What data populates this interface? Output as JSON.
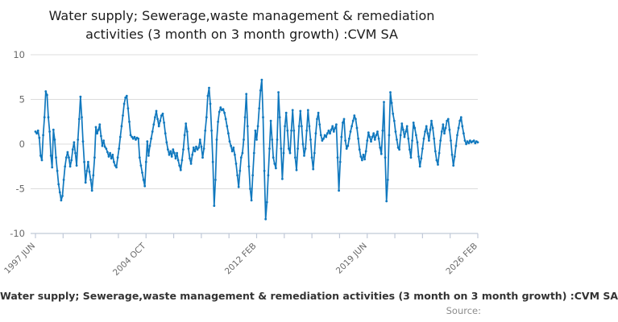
{
  "title": {
    "line1": "Water supply; Sewerage,waste management & remediation",
    "line2": "activities (3 month on 3 month growth) :CVM SA"
  },
  "footer": {
    "legend": "Water supply; Sewerage,waste management & remediation activities (3 month on 3 month growth) :CVM SA",
    "source_label": "Source:"
  },
  "chart": {
    "line_color": "#1078be",
    "marker_color": "#1078be",
    "grid_color": "#dcdcdc",
    "axis_color": "#c0c9d8",
    "tick_label_color": "#696969",
    "x_tick_count": 17,
    "x_label_tick_indexes": [
      0,
      4,
      8,
      12,
      16
    ]
  },
  "chart_data": {
    "type": "line",
    "title": "Water supply; Sewerage,waste management & remediation activities (3 month on 3 month growth) :CVM SA",
    "frequency": "monthly",
    "x_start": "1997 JUN",
    "x_end": "2026 FEB",
    "x_tick_labels": [
      "1997 JUN",
      "2004 OCT",
      "2012 FEB",
      "2019 JUN",
      "2026 FEB"
    ],
    "ylim": [
      -10,
      10
    ],
    "y_ticks": [
      10,
      5,
      0,
      -5,
      -10
    ],
    "grid": true,
    "legend_position": "bottom",
    "values": [
      1.4,
      1.2,
      1.5,
      0.7,
      -1.3,
      -1.8,
      1.0,
      3.0,
      5.9,
      5.5,
      3.0,
      1.4,
      -1.3,
      -2.6,
      1.6,
      0.5,
      -1.5,
      -3.0,
      -4.5,
      -5.4,
      -6.3,
      -5.8,
      -4.0,
      -2.5,
      -1.5,
      -0.9,
      -1.5,
      -2.5,
      -1.8,
      -0.6,
      0.2,
      -1.0,
      -2.4,
      0.5,
      2.8,
      5.3,
      3.0,
      0.3,
      -2.0,
      -4.3,
      -3.0,
      -2.0,
      -3.1,
      -4.0,
      -5.2,
      -3.5,
      -1.5,
      1.9,
      1.2,
      1.6,
      2.2,
      0.9,
      -0.2,
      0.4,
      -0.3,
      -0.5,
      -0.9,
      -1.4,
      -1.0,
      -1.6,
      -1.2,
      -2.0,
      -2.4,
      -2.6,
      -1.5,
      -0.5,
      0.8,
      2.0,
      3.2,
      4.5,
      5.2,
      5.4,
      4.0,
      2.5,
      1.0,
      0.8,
      0.6,
      0.8,
      0.5,
      0.7,
      0.6,
      -1.5,
      -2.4,
      -3.2,
      -4.0,
      -4.7,
      -2.0,
      0.3,
      -1.3,
      -0.2,
      0.6,
      1.4,
      2.2,
      3.0,
      3.7,
      2.8,
      2.0,
      2.6,
      3.2,
      3.4,
      2.4,
      1.2,
      0.2,
      -0.6,
      -1.2,
      -0.8,
      -1.4,
      -0.6,
      -1.0,
      -1.6,
      -1.0,
      -1.8,
      -2.4,
      -2.9,
      -1.8,
      -0.6,
      1.0,
      2.3,
      1.4,
      -0.5,
      -1.6,
      -2.2,
      -1.2,
      -0.4,
      -0.8,
      -0.3,
      -0.6,
      -0.4,
      0.5,
      -0.3,
      -1.5,
      -0.5,
      1.5,
      3.0,
      5.4,
      6.3,
      4.5,
      1.5,
      -2.0,
      -6.9,
      -4.0,
      0.5,
      2.5,
      3.6,
      4.1,
      3.8,
      3.9,
      3.5,
      2.8,
      2.0,
      1.2,
      0.3,
      -0.2,
      -0.8,
      -0.4,
      -1.2,
      -2.2,
      -3.5,
      -4.8,
      -3.0,
      -1.5,
      -1.0,
      0.5,
      3.0,
      5.6,
      2.0,
      -2.5,
      -5.0,
      -6.3,
      -3.5,
      -1.0,
      1.5,
      0.5,
      2.0,
      4.0,
      6.0,
      7.2,
      3.0,
      -3.0,
      -8.4,
      -6.5,
      -3.5,
      -0.5,
      2.6,
      0.5,
      -1.5,
      -2.2,
      -2.7,
      0.5,
      5.8,
      3.0,
      -0.5,
      -3.9,
      -1.0,
      2.0,
      3.5,
      1.5,
      -0.5,
      -1.0,
      1.5,
      3.8,
      1.5,
      -1.5,
      -2.9,
      -0.5,
      2.0,
      3.7,
      2.0,
      0.0,
      -1.3,
      -0.5,
      1.5,
      3.8,
      2.0,
      0.5,
      -1.5,
      -2.8,
      -1.0,
      1.2,
      2.8,
      3.5,
      2.2,
      1.0,
      0.4,
      0.6,
      1.0,
      0.8,
      1.2,
      1.5,
      1.2,
      1.6,
      2.0,
      1.4,
      1.8,
      2.2,
      -1.5,
      -5.2,
      -2.0,
      0.8,
      2.4,
      2.8,
      0.4,
      -0.5,
      -0.2,
      0.6,
      1.4,
      2.0,
      2.6,
      3.2,
      2.8,
      1.8,
      0.6,
      -0.6,
      -1.4,
      -1.8,
      -1.2,
      -1.7,
      -0.8,
      0.4,
      1.3,
      0.8,
      0.3,
      0.8,
      1.2,
      0.5,
      1.0,
      1.4,
      0.6,
      -0.4,
      -1.1,
      1.5,
      4.7,
      -1.5,
      -6.4,
      -4.0,
      1.0,
      5.8,
      4.6,
      3.4,
      2.6,
      1.4,
      0.5,
      -0.4,
      -0.6,
      1.0,
      2.3,
      1.6,
      0.8,
      1.4,
      2.0,
      0.6,
      -0.6,
      -1.5,
      0.4,
      2.4,
      1.8,
      1.0,
      0.2,
      -1.4,
      -2.5,
      -1.6,
      -0.5,
      0.6,
      1.4,
      2.0,
      1.2,
      0.4,
      1.6,
      2.6,
      1.8,
      0.6,
      -0.8,
      -1.8,
      -2.3,
      -1.0,
      0.4,
      1.4,
      2.2,
      1.2,
      1.8,
      2.6,
      2.8,
      1.6,
      0.4,
      -1.2,
      -2.4,
      -1.4,
      -0.2,
      1.0,
      1.8,
      2.6,
      3.0,
      2.0,
      1.2,
      0.4,
      0.0,
      0.3,
      0.1,
      0.4,
      0.2,
      0.3,
      0.4,
      0.1,
      0.3,
      0.2
    ]
  }
}
